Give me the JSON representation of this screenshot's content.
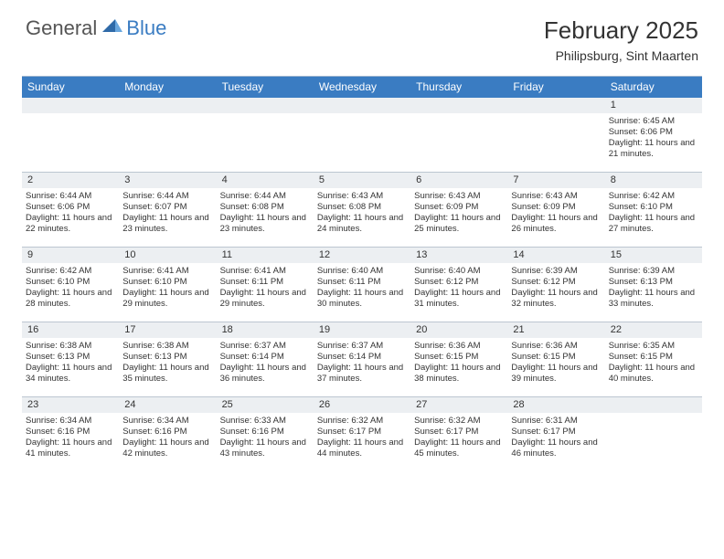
{
  "logo": {
    "text1": "General",
    "text2": "Blue"
  },
  "header": {
    "month_title": "February 2025",
    "location": "Philipsburg, Sint Maarten"
  },
  "colors": {
    "header_bg": "#3a7cc2",
    "header_text": "#ffffff",
    "daynum_bg": "#eceff2",
    "border": "#bcc6d1",
    "text": "#333333"
  },
  "day_names": [
    "Sunday",
    "Monday",
    "Tuesday",
    "Wednesday",
    "Thursday",
    "Friday",
    "Saturday"
  ],
  "weeks": [
    [
      {
        "n": "",
        "lines": []
      },
      {
        "n": "",
        "lines": []
      },
      {
        "n": "",
        "lines": []
      },
      {
        "n": "",
        "lines": []
      },
      {
        "n": "",
        "lines": []
      },
      {
        "n": "",
        "lines": []
      },
      {
        "n": "1",
        "lines": [
          "Sunrise: 6:45 AM",
          "Sunset: 6:06 PM",
          "Daylight: 11 hours and 21 minutes."
        ]
      }
    ],
    [
      {
        "n": "2",
        "lines": [
          "Sunrise: 6:44 AM",
          "Sunset: 6:06 PM",
          "Daylight: 11 hours and 22 minutes."
        ]
      },
      {
        "n": "3",
        "lines": [
          "Sunrise: 6:44 AM",
          "Sunset: 6:07 PM",
          "Daylight: 11 hours and 23 minutes."
        ]
      },
      {
        "n": "4",
        "lines": [
          "Sunrise: 6:44 AM",
          "Sunset: 6:08 PM",
          "Daylight: 11 hours and 23 minutes."
        ]
      },
      {
        "n": "5",
        "lines": [
          "Sunrise: 6:43 AM",
          "Sunset: 6:08 PM",
          "Daylight: 11 hours and 24 minutes."
        ]
      },
      {
        "n": "6",
        "lines": [
          "Sunrise: 6:43 AM",
          "Sunset: 6:09 PM",
          "Daylight: 11 hours and 25 minutes."
        ]
      },
      {
        "n": "7",
        "lines": [
          "Sunrise: 6:43 AM",
          "Sunset: 6:09 PM",
          "Daylight: 11 hours and 26 minutes."
        ]
      },
      {
        "n": "8",
        "lines": [
          "Sunrise: 6:42 AM",
          "Sunset: 6:10 PM",
          "Daylight: 11 hours and 27 minutes."
        ]
      }
    ],
    [
      {
        "n": "9",
        "lines": [
          "Sunrise: 6:42 AM",
          "Sunset: 6:10 PM",
          "Daylight: 11 hours and 28 minutes."
        ]
      },
      {
        "n": "10",
        "lines": [
          "Sunrise: 6:41 AM",
          "Sunset: 6:10 PM",
          "Daylight: 11 hours and 29 minutes."
        ]
      },
      {
        "n": "11",
        "lines": [
          "Sunrise: 6:41 AM",
          "Sunset: 6:11 PM",
          "Daylight: 11 hours and 29 minutes."
        ]
      },
      {
        "n": "12",
        "lines": [
          "Sunrise: 6:40 AM",
          "Sunset: 6:11 PM",
          "Daylight: 11 hours and 30 minutes."
        ]
      },
      {
        "n": "13",
        "lines": [
          "Sunrise: 6:40 AM",
          "Sunset: 6:12 PM",
          "Daylight: 11 hours and 31 minutes."
        ]
      },
      {
        "n": "14",
        "lines": [
          "Sunrise: 6:39 AM",
          "Sunset: 6:12 PM",
          "Daylight: 11 hours and 32 minutes."
        ]
      },
      {
        "n": "15",
        "lines": [
          "Sunrise: 6:39 AM",
          "Sunset: 6:13 PM",
          "Daylight: 11 hours and 33 minutes."
        ]
      }
    ],
    [
      {
        "n": "16",
        "lines": [
          "Sunrise: 6:38 AM",
          "Sunset: 6:13 PM",
          "Daylight: 11 hours and 34 minutes."
        ]
      },
      {
        "n": "17",
        "lines": [
          "Sunrise: 6:38 AM",
          "Sunset: 6:13 PM",
          "Daylight: 11 hours and 35 minutes."
        ]
      },
      {
        "n": "18",
        "lines": [
          "Sunrise: 6:37 AM",
          "Sunset: 6:14 PM",
          "Daylight: 11 hours and 36 minutes."
        ]
      },
      {
        "n": "19",
        "lines": [
          "Sunrise: 6:37 AM",
          "Sunset: 6:14 PM",
          "Daylight: 11 hours and 37 minutes."
        ]
      },
      {
        "n": "20",
        "lines": [
          "Sunrise: 6:36 AM",
          "Sunset: 6:15 PM",
          "Daylight: 11 hours and 38 minutes."
        ]
      },
      {
        "n": "21",
        "lines": [
          "Sunrise: 6:36 AM",
          "Sunset: 6:15 PM",
          "Daylight: 11 hours and 39 minutes."
        ]
      },
      {
        "n": "22",
        "lines": [
          "Sunrise: 6:35 AM",
          "Sunset: 6:15 PM",
          "Daylight: 11 hours and 40 minutes."
        ]
      }
    ],
    [
      {
        "n": "23",
        "lines": [
          "Sunrise: 6:34 AM",
          "Sunset: 6:16 PM",
          "Daylight: 11 hours and 41 minutes."
        ]
      },
      {
        "n": "24",
        "lines": [
          "Sunrise: 6:34 AM",
          "Sunset: 6:16 PM",
          "Daylight: 11 hours and 42 minutes."
        ]
      },
      {
        "n": "25",
        "lines": [
          "Sunrise: 6:33 AM",
          "Sunset: 6:16 PM",
          "Daylight: 11 hours and 43 minutes."
        ]
      },
      {
        "n": "26",
        "lines": [
          "Sunrise: 6:32 AM",
          "Sunset: 6:17 PM",
          "Daylight: 11 hours and 44 minutes."
        ]
      },
      {
        "n": "27",
        "lines": [
          "Sunrise: 6:32 AM",
          "Sunset: 6:17 PM",
          "Daylight: 11 hours and 45 minutes."
        ]
      },
      {
        "n": "28",
        "lines": [
          "Sunrise: 6:31 AM",
          "Sunset: 6:17 PM",
          "Daylight: 11 hours and 46 minutes."
        ]
      },
      {
        "n": "",
        "lines": []
      }
    ]
  ]
}
